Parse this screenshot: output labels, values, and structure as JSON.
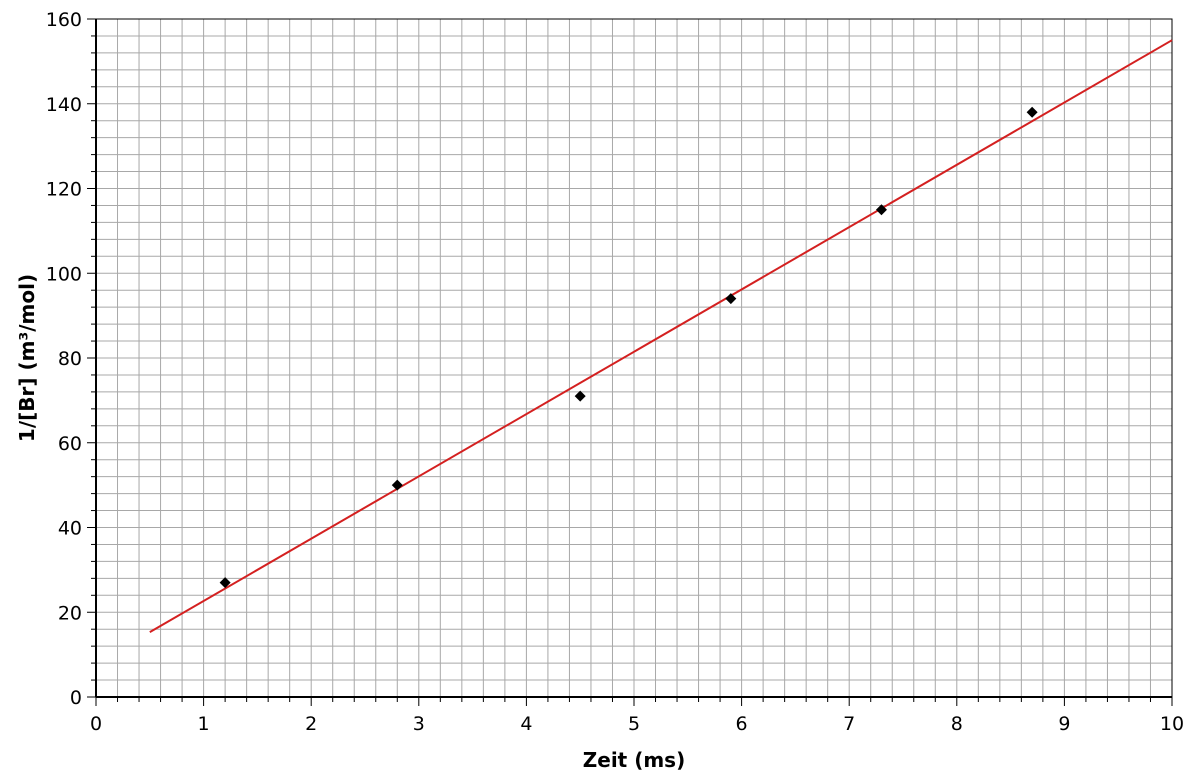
{
  "chart_data": {
    "type": "scatter",
    "xlabel": "Zeit (ms)",
    "ylabel": "1/[Br] (m³/mol)",
    "xlim": [
      0,
      10
    ],
    "ylim": [
      0,
      160
    ],
    "x_ticks": [
      "0",
      "1",
      "2",
      "3",
      "4",
      "5",
      "6",
      "7",
      "8",
      "9",
      "10"
    ],
    "y_ticks": [
      "0",
      "20",
      "40",
      "60",
      "80",
      "100",
      "120",
      "140",
      "160"
    ],
    "grid": true,
    "series": [
      {
        "type": "scatter",
        "x": [
          1.2,
          2.8,
          4.5,
          5.9,
          7.3,
          8.7
        ],
        "y": [
          27,
          50,
          71,
          94,
          115,
          138
        ],
        "color": "#000000"
      },
      {
        "type": "line",
        "x": [
          0.5,
          10
        ],
        "y": [
          15.3,
          155
        ],
        "color": "#d42020"
      }
    ]
  }
}
